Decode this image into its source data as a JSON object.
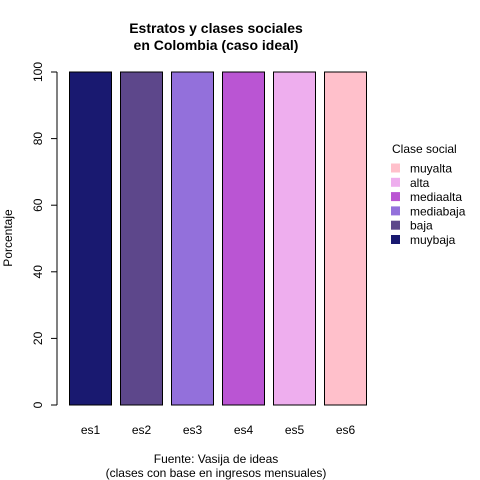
{
  "chart_data": {
    "type": "bar",
    "stacked": true,
    "title_line1": "Estratos y clases sociales",
    "title_line2": "en Colombia (caso ideal)",
    "xlabel_line1": "Fuente: Vasija de ideas",
    "xlabel_line2": "(clases con base en ingresos mensuales)",
    "ylabel": "Porcentaje",
    "ylim": [
      0,
      100
    ],
    "yticks": [
      0,
      20,
      40,
      60,
      80,
      100
    ],
    "categories": [
      "es1",
      "es2",
      "es3",
      "es4",
      "es5",
      "es6"
    ],
    "legend_title": "Clase social",
    "legend_position": "right",
    "grid": false,
    "series": [
      {
        "name": "muybaja",
        "color": "#191970",
        "values": [
          100,
          0,
          0,
          0,
          0,
          0
        ]
      },
      {
        "name": "baja",
        "color": "#5D478B",
        "values": [
          0,
          100,
          0,
          0,
          0,
          0
        ]
      },
      {
        "name": "mediabaja",
        "color": "#9370DB",
        "values": [
          0,
          0,
          100,
          0,
          0,
          0
        ]
      },
      {
        "name": "mediaalta",
        "color": "#BA55D3",
        "values": [
          0,
          0,
          0,
          100,
          0,
          0
        ]
      },
      {
        "name": "alta",
        "color": "#EEAEEE",
        "values": [
          0,
          0,
          0,
          0,
          100,
          0
        ]
      },
      {
        "name": "muyalta",
        "color": "#FFC0CB",
        "values": [
          0,
          0,
          0,
          0,
          0,
          100
        ]
      }
    ]
  }
}
